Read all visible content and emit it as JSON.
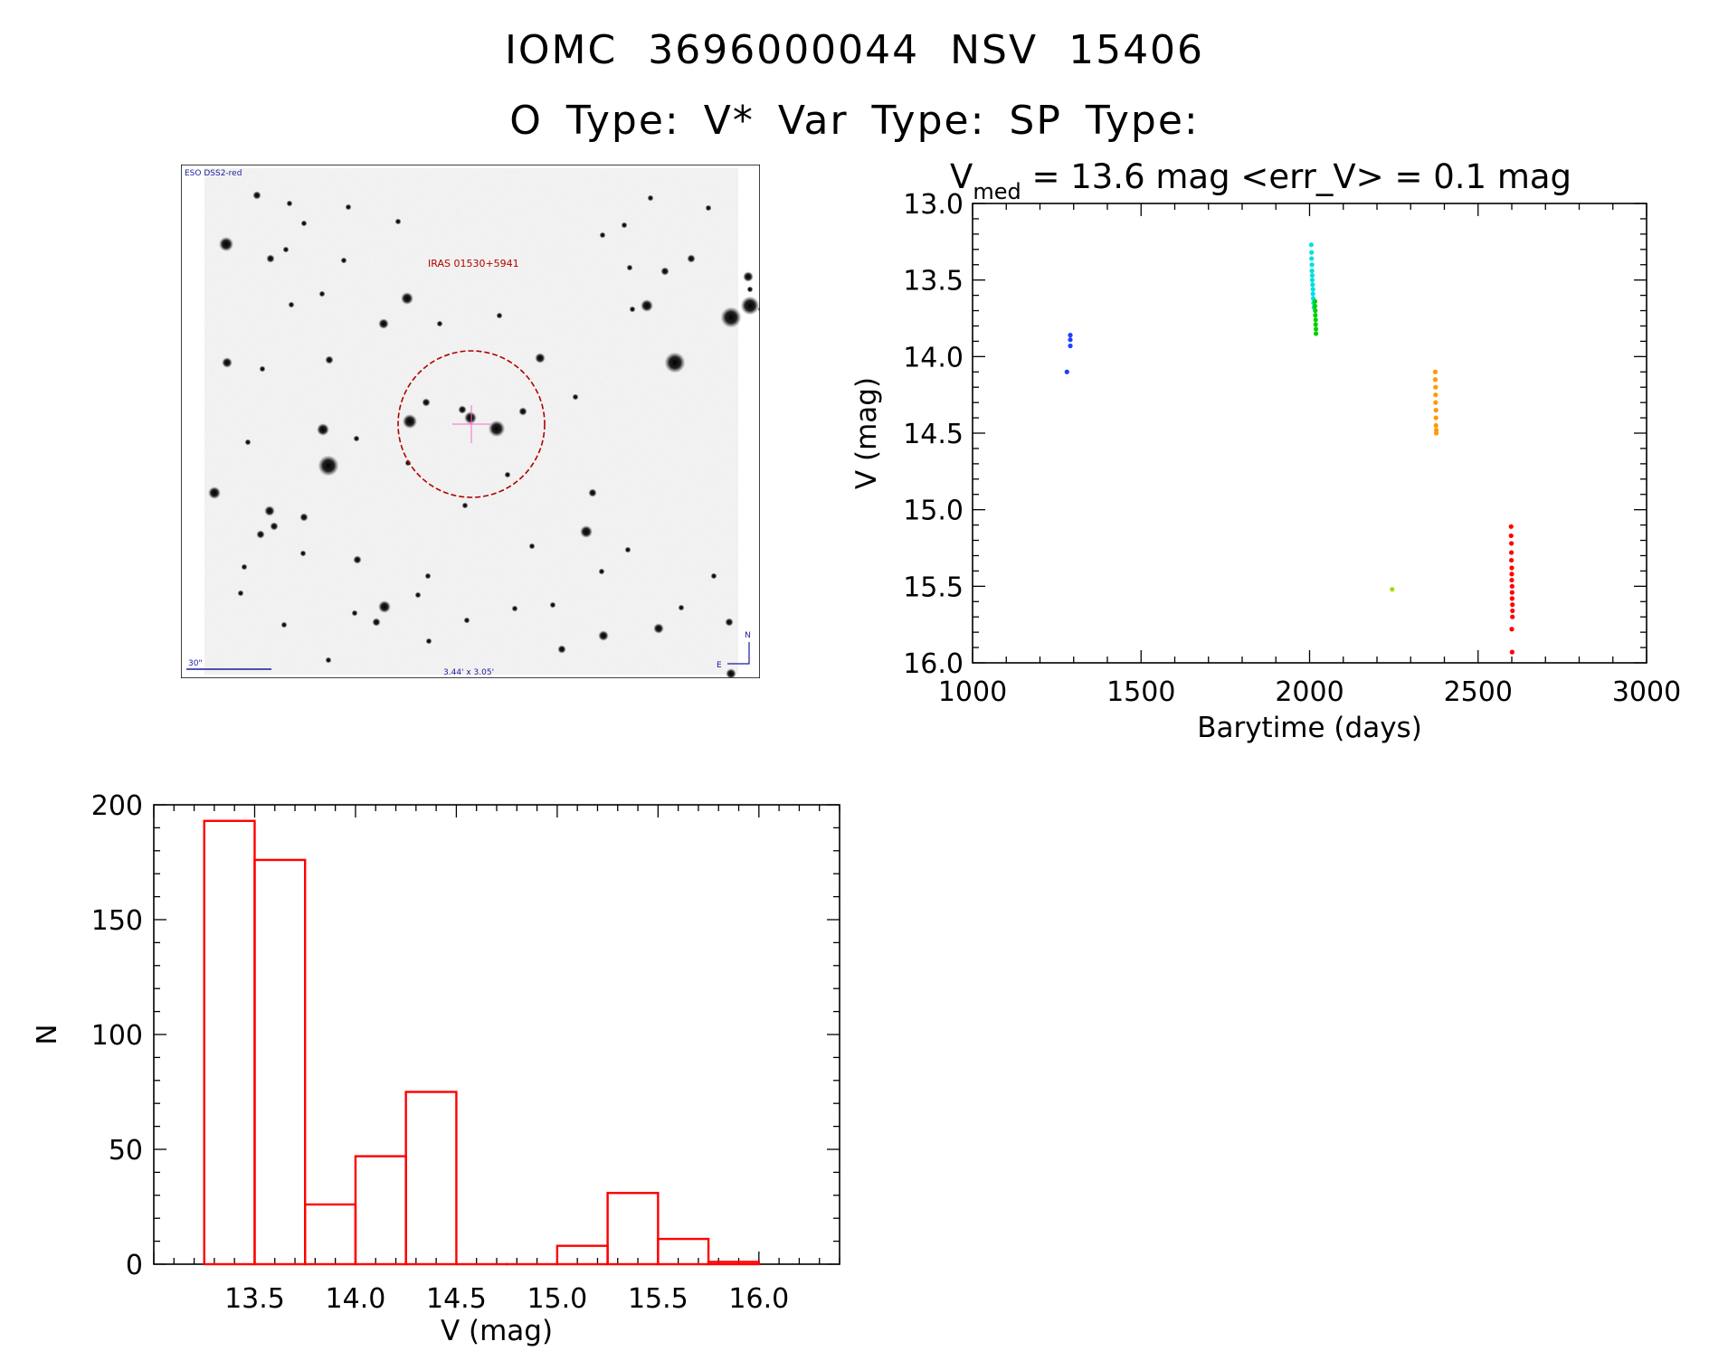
{
  "header": {
    "line1": "IOMC 3696000044    NSV 15406",
    "line2": "O Type: V*   Var Type:    SP Type:"
  },
  "image_panel": {
    "survey_label": "ESO DSS2-red",
    "source_label": "IRAS 01530+5941",
    "scale_label": "30\"",
    "size_label": "3.44' x 3.05'",
    "north_label": "N",
    "east_label": "E",
    "label_colors": {
      "survey": "#1a1aa0",
      "source": "#b00000"
    }
  },
  "chart_data": [
    {
      "id": "lightcurve",
      "type": "scatter",
      "title_parts": {
        "symbol": "V",
        "subscript": "med",
        "rest": " = 13.6 mag <err_V> = 0.1 mag"
      },
      "xlabel": "Barytime (days)",
      "ylabel": "V (mag)",
      "xlim": [
        1000,
        3000
      ],
      "ylim": [
        13.0,
        16.0
      ],
      "y_inverted": true,
      "xticks": [
        1000,
        1500,
        2000,
        2500,
        3000
      ],
      "xtick_labels": [
        "1000",
        "1500",
        "2000",
        "2500",
        "3000"
      ],
      "yticks": [
        13.0,
        13.5,
        14.0,
        14.5,
        15.0,
        15.5,
        16.0
      ],
      "ytick_labels": [
        "13.0",
        "13.5",
        "14.0",
        "14.5",
        "15.0",
        "15.5",
        "16.0"
      ],
      "series": [
        {
          "color": "#1f3fff",
          "x": [
            1280,
            1290,
            1290,
            1290
          ],
          "y": [
            14.1,
            13.86,
            13.89,
            13.93
          ]
        },
        {
          "color": "#00e0e0",
          "x": [
            2005,
            2006,
            2006,
            2007,
            2007,
            2008,
            2008,
            2009,
            2010,
            2010,
            2011,
            2012,
            2013
          ],
          "y": [
            13.27,
            13.32,
            13.36,
            13.4,
            13.44,
            13.47,
            13.5,
            13.53,
            13.56,
            13.59,
            13.62,
            13.65,
            13.68
          ]
        },
        {
          "color": "#00d000",
          "x": [
            2016,
            2016,
            2017,
            2017,
            2018,
            2018,
            2019,
            2019
          ],
          "y": [
            13.64,
            13.67,
            13.7,
            13.73,
            13.76,
            13.79,
            13.82,
            13.85
          ]
        },
        {
          "color": "#a0e000",
          "x": [
            2245
          ],
          "y": [
            15.52
          ]
        },
        {
          "color": "#ff9900",
          "x": [
            2373,
            2373,
            2374,
            2374,
            2374,
            2375,
            2375,
            2375,
            2376,
            2376
          ],
          "y": [
            14.1,
            14.15,
            14.2,
            14.25,
            14.3,
            14.35,
            14.4,
            14.45,
            14.48,
            14.5
          ]
        },
        {
          "color": "#ff0000",
          "x": [
            2598,
            2598,
            2599,
            2599,
            2599,
            2600,
            2600,
            2600,
            2601,
            2601,
            2601,
            2602,
            2602,
            2602,
            2600,
            2601
          ],
          "y": [
            15.11,
            15.17,
            15.22,
            15.28,
            15.33,
            15.38,
            15.42,
            15.46,
            15.5,
            15.54,
            15.58,
            15.62,
            15.66,
            15.7,
            15.78,
            15.93
          ]
        }
      ]
    },
    {
      "id": "histogram",
      "type": "bar",
      "xlabel": "V (mag)",
      "ylabel": "N",
      "xlim": [
        13.0,
        16.4
      ],
      "ylim": [
        0,
        200
      ],
      "xticks": [
        13.5,
        14.0,
        14.5,
        15.0,
        15.5,
        16.0
      ],
      "xtick_labels": [
        "13.5",
        "14.0",
        "14.5",
        "15.0",
        "15.5",
        "16.0"
      ],
      "yticks": [
        0,
        50,
        100,
        150,
        200
      ],
      "ytick_labels": [
        "0",
        "50",
        "100",
        "150",
        "200"
      ],
      "bar_color": "#ff0000",
      "bin_edges": [
        13.25,
        13.5,
        13.75,
        14.0,
        14.25,
        14.5,
        14.75,
        15.0,
        15.25,
        15.5,
        15.75,
        16.0
      ],
      "values": [
        193,
        176,
        26,
        47,
        75,
        0,
        0,
        8,
        31,
        11,
        1
      ]
    }
  ]
}
